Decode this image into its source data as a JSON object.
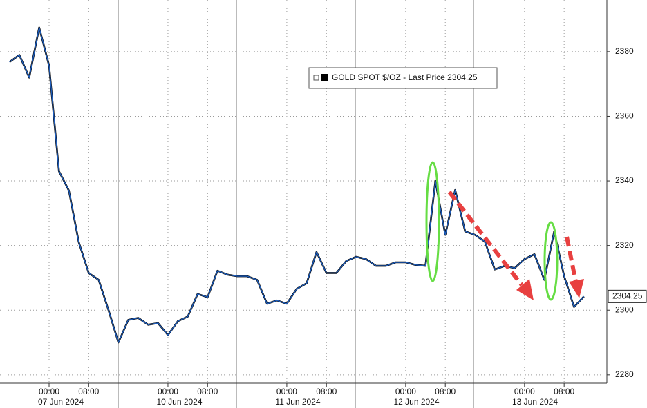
{
  "chart_data": {
    "type": "line",
    "categories": [
      null,
      null,
      null,
      null,
      "00:00",
      null,
      null,
      null,
      "08:00",
      null,
      null,
      null,
      null,
      null,
      null,
      null,
      "00:00",
      null,
      null,
      null,
      "08:00",
      null,
      null,
      null,
      null,
      null,
      null,
      null,
      "00:00",
      null,
      null,
      null,
      "08:00",
      null,
      null,
      null,
      null,
      null,
      null,
      null,
      "00:00",
      null,
      null,
      null,
      "08:00",
      null,
      null,
      null,
      null,
      null,
      null,
      null,
      "00:00",
      null,
      null,
      null,
      "08:00",
      null,
      null
    ],
    "date_labels": [
      "07 Jun 2024",
      "10 Jun 2024",
      "11 Jun 2024",
      "12 Jun 2024",
      "13 Jun 2024"
    ],
    "series": [
      {
        "name": "GOLD SPOT $/OZ - Last Price 2304.25",
        "color": "#1f5fbf",
        "values": [
          2376.8,
          2379,
          2372,
          2387.5,
          2375.7,
          2343,
          2337,
          2321,
          2311.5,
          2309.4,
          2300,
          2290,
          2297,
          2297.6,
          2295.5,
          2296,
          2292.3,
          2296.6,
          2298,
          2305,
          2304,
          2312.2,
          2311,
          2310.5,
          2310.5,
          2309.4,
          2302,
          2303,
          2302,
          2306.6,
          2308.3,
          2318,
          2311.5,
          2311.5,
          2315.2,
          2316.5,
          2315.8,
          2313.7,
          2313.7,
          2314.8,
          2314.8,
          2314,
          2313.7,
          2340,
          2323.3,
          2337.2,
          2324.4,
          2323.3,
          2321.2,
          2312.6,
          2313.7,
          2313,
          2315.8,
          2317.3,
          2309.4,
          2324.4,
          2310.5,
          2301,
          2304.25
        ]
      }
    ],
    "last_price": 2304.25,
    "ylim": [
      2277.4,
      2396
    ],
    "yticks": [
      2280,
      2300,
      2320,
      2340,
      2360,
      2380
    ],
    "grid": true
  }
}
